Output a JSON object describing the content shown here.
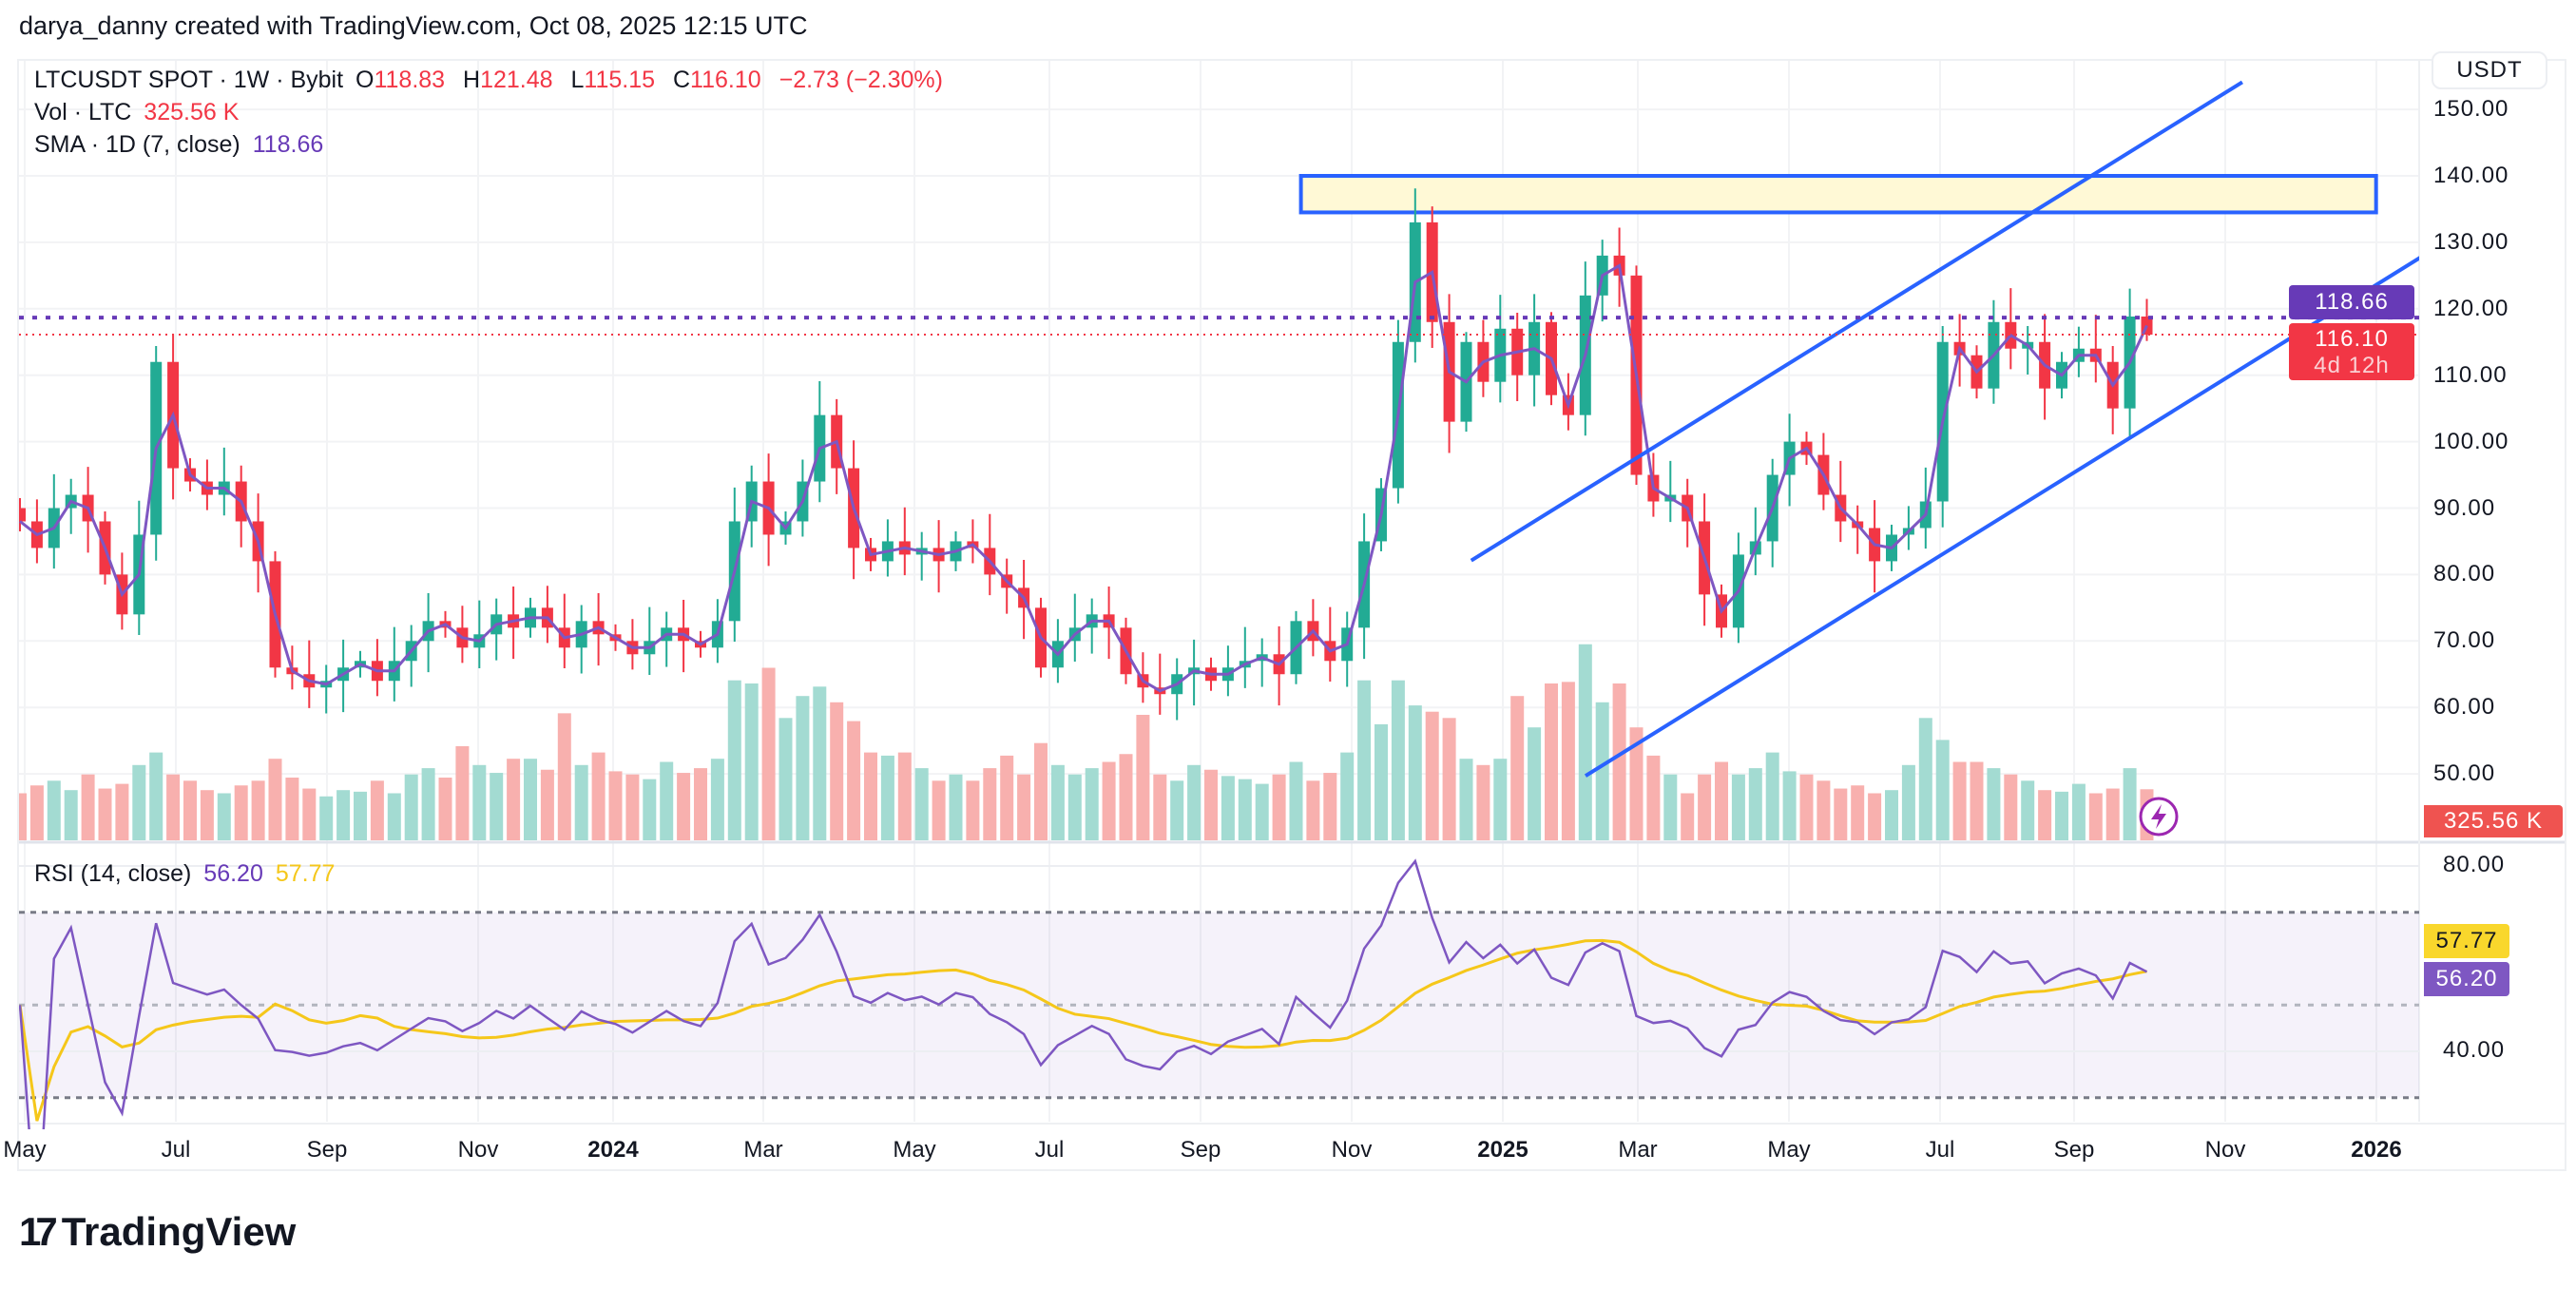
{
  "credit": "darya_danny created with TradingView.com, Oct 08, 2025 12:15 UTC",
  "legend": {
    "symbol": "LTCUSDT SPOT · 1W · Bybit",
    "open_label": "O",
    "open": "118.83",
    "high_label": "H",
    "high": "121.48",
    "low_label": "L",
    "low": "115.15",
    "close_label": "C",
    "close": "116.10",
    "change": "−2.73 (−2.30%)",
    "vol_label": "Vol · LTC",
    "vol": "325.56 K",
    "sma_label": "SMA · 1D (7, close)",
    "sma": "118.66",
    "rsi_label": "RSI (14, close)",
    "rsi": "56.20",
    "rsi_ma": "57.77"
  },
  "currency_button": "USDT",
  "price_tags": {
    "sma": "118.66",
    "last": "116.10",
    "countdown": "4d 12h",
    "volume": "325.56 K",
    "rsi_ma": "57.77",
    "rsi": "56.20"
  },
  "colors": {
    "up": "#22ab94",
    "down": "#f23645",
    "sma": "#7e57c2",
    "rsi": "#7e57c2",
    "rsi_ma": "#f5c71a",
    "drawing": "#2962ff",
    "zone_fill": "#fff9d6"
  },
  "brand": "TradingView",
  "chart_data": {
    "type": "candlestick",
    "interval": "1W",
    "price_axis": {
      "ticks": [
        "150.00",
        "140.00",
        "130.00",
        "120.00",
        "110.00",
        "100.00",
        "90.00",
        "80.00",
        "70.00",
        "60.00",
        "50.00"
      ],
      "values": [
        150,
        140,
        130,
        120,
        110,
        100,
        90,
        80,
        70,
        60,
        50
      ]
    },
    "rsi_axis": {
      "ticks": [
        "80.00",
        "40.00"
      ],
      "values": [
        80,
        40
      ],
      "bands": [
        70,
        50,
        30
      ]
    },
    "time_axis": [
      {
        "label": "May",
        "bold": false
      },
      {
        "label": "Jul",
        "bold": false
      },
      {
        "label": "Sep",
        "bold": false
      },
      {
        "label": "Nov",
        "bold": false
      },
      {
        "label": "2024",
        "bold": true
      },
      {
        "label": "Mar",
        "bold": false
      },
      {
        "label": "May",
        "bold": false
      },
      {
        "label": "Jul",
        "bold": false
      },
      {
        "label": "Sep",
        "bold": false
      },
      {
        "label": "Nov",
        "bold": false
      },
      {
        "label": "2025",
        "bold": true
      },
      {
        "label": "Mar",
        "bold": false
      },
      {
        "label": "May",
        "bold": false
      },
      {
        "label": "Jul",
        "bold": false
      },
      {
        "label": "Sep",
        "bold": false
      },
      {
        "label": "Nov",
        "bold": false
      },
      {
        "label": "2026",
        "bold": true
      }
    ],
    "closes": [
      88,
      84,
      90,
      92,
      88,
      80,
      74,
      86,
      112,
      96,
      94,
      92,
      94,
      88,
      82,
      66,
      65,
      63,
      64,
      66,
      67,
      64,
      67,
      70,
      73,
      72,
      69,
      71,
      74,
      72,
      75,
      72,
      69,
      73,
      71,
      70,
      68,
      70,
      72,
      70,
      69,
      73,
      88,
      94,
      86,
      88,
      94,
      104,
      96,
      84,
      82,
      85,
      83,
      84,
      82,
      85,
      84,
      80,
      78,
      75,
      66,
      70,
      72,
      74,
      72,
      65,
      63,
      62,
      65,
      66,
      64,
      66,
      67,
      68,
      65,
      73,
      70,
      67,
      72,
      85,
      93,
      115,
      133,
      118,
      103,
      115,
      109,
      117,
      110,
      118,
      107,
      104,
      122,
      128,
      125,
      95,
      91,
      92,
      88,
      77,
      72,
      83,
      85,
      95,
      100,
      98,
      92,
      88,
      87,
      82,
      86,
      87,
      91,
      115,
      113,
      108,
      118,
      114,
      115,
      108,
      112,
      114,
      112,
      105,
      118.83,
      116.1
    ],
    "last_candle": {
      "open": 118.83,
      "high": 121.48,
      "low": 115.15,
      "close": 116.1
    },
    "volume_k": [
      300,
      350,
      380,
      320,
      420,
      330,
      360,
      480,
      560,
      420,
      380,
      320,
      300,
      350,
      380,
      520,
      400,
      330,
      280,
      320,
      310,
      380,
      300,
      420,
      460,
      400,
      600,
      480,
      430,
      520,
      520,
      450,
      810,
      480,
      560,
      440,
      420,
      390,
      500,
      430,
      460,
      520,
      1020,
      1000,
      1100,
      780,
      920,
      980,
      880,
      760,
      560,
      540,
      560,
      460,
      380,
      420,
      380,
      460,
      540,
      420,
      620,
      480,
      420,
      460,
      500,
      550,
      800,
      420,
      380,
      480,
      450,
      410,
      390,
      360,
      420,
      500,
      380,
      430,
      560,
      1020,
      740,
      1020,
      860,
      820,
      780,
      520,
      480,
      520,
      920,
      720,
      1000,
      1010,
      1250,
      880,
      1000,
      720,
      540,
      420,
      300,
      420,
      500,
      420,
      460,
      560,
      440,
      420,
      380,
      330,
      350,
      300,
      320,
      480,
      780,
      640,
      500,
      500,
      460,
      420,
      380,
      320,
      310,
      360,
      300,
      330,
      460,
      325.56
    ],
    "sma_value": 118.66,
    "rsi_value": 56.2,
    "rsi_ma_value": 57.77,
    "drawings": {
      "resistance_zone": {
        "price_low": 134.5,
        "price_high": 140,
        "from": "2024-10-10",
        "to": "2025-12-26"
      },
      "channel_upper": {
        "from": {
          "date": "2024-12-19",
          "price": 82.1
        },
        "to": {
          "date": "2025-11-01",
          "price": 154.1
        }
      },
      "channel_lower": {
        "from": {
          "date": "2025-02-04",
          "price": 49.7
        },
        "to": {
          "date": "2026-01-14",
          "price": 127.9
        }
      }
    }
  }
}
